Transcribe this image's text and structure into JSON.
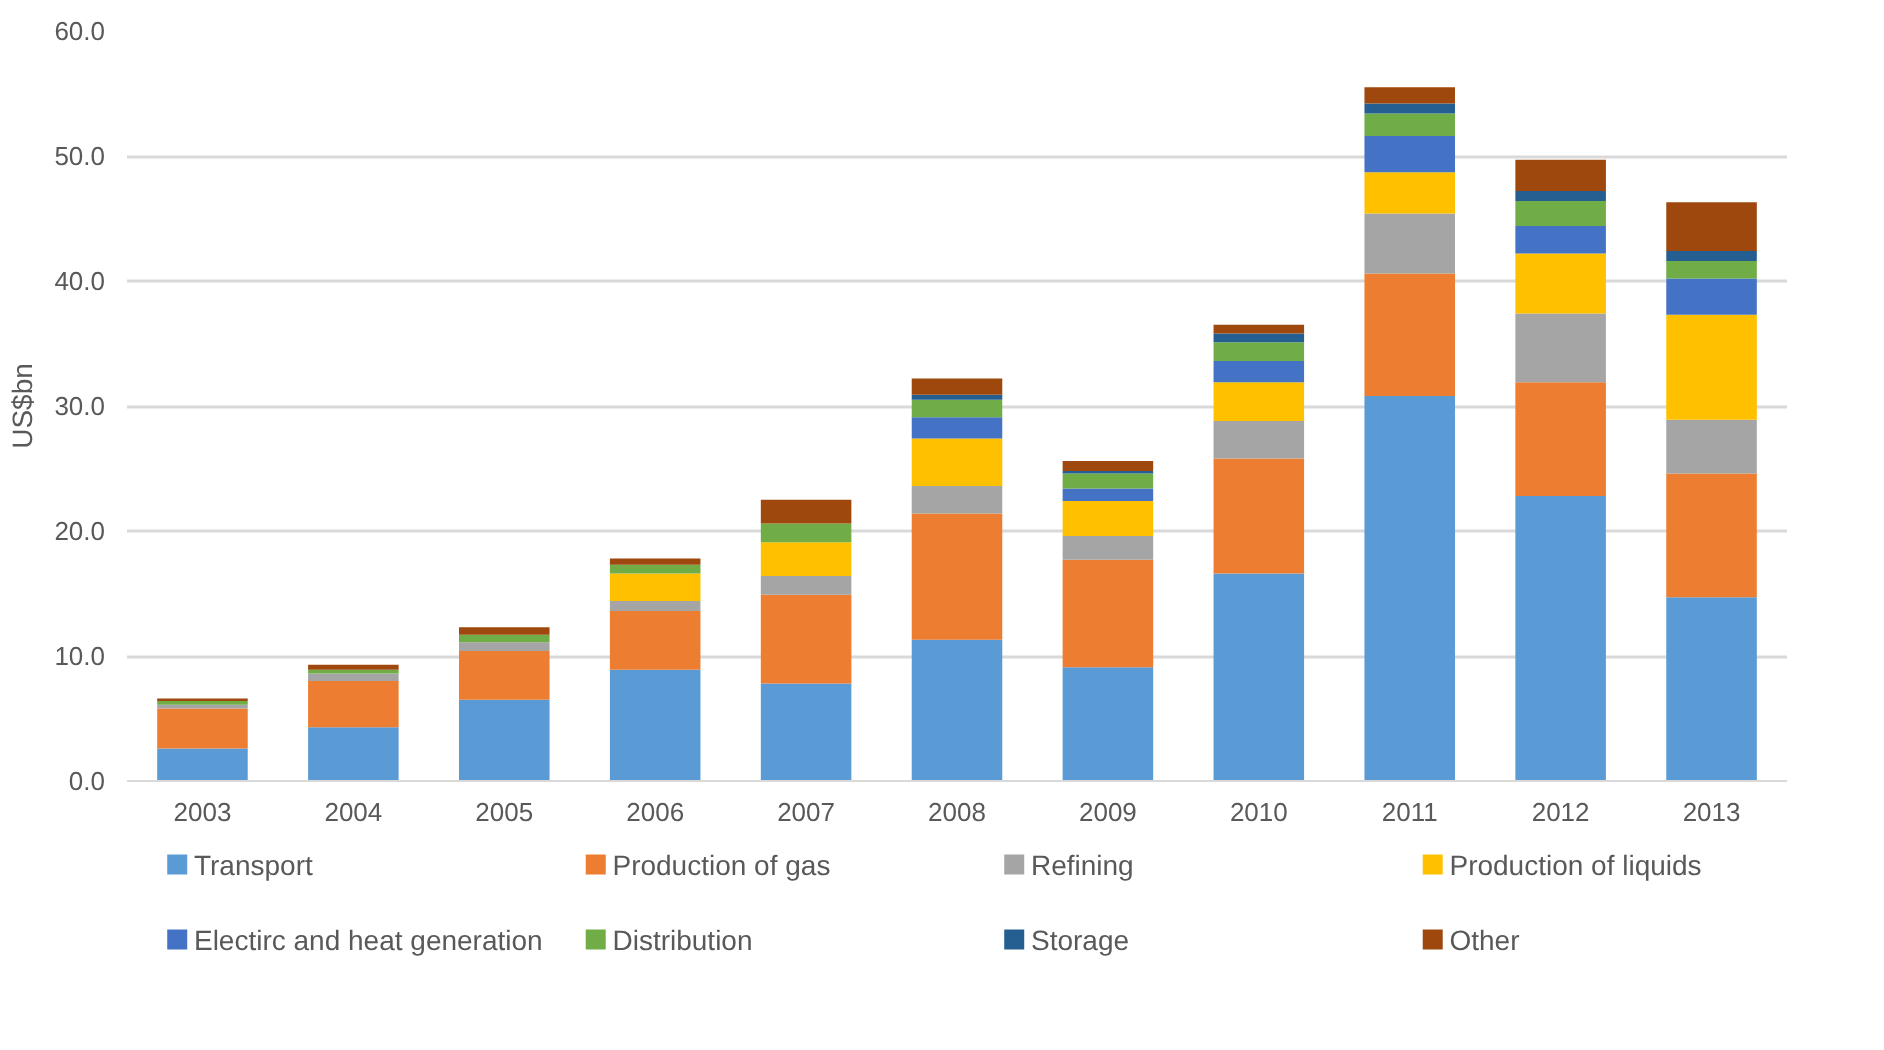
{
  "chart_data": {
    "type": "bar",
    "stacked": true,
    "ylabel": "US$bn",
    "categories": [
      "2003",
      "2004",
      "2005",
      "2006",
      "2007",
      "2008",
      "2009",
      "2010",
      "2011",
      "2012",
      "2013"
    ],
    "series": [
      {
        "name": "Transport",
        "color": "#5b9bd5",
        "values": [
          2.6,
          4.3,
          6.5,
          8.9,
          7.8,
          11.3,
          9.1,
          16.6,
          30.8,
          22.8,
          14.7
        ]
      },
      {
        "name": "Production of gas",
        "color": "#ed7d31",
        "values": [
          3.2,
          3.7,
          3.9,
          4.7,
          7.1,
          10.1,
          8.6,
          9.2,
          9.8,
          9.1,
          9.9
        ]
      },
      {
        "name": "Refining",
        "color": "#a5a5a5",
        "values": [
          0.3,
          0.6,
          0.7,
          0.8,
          1.5,
          2.2,
          1.9,
          3.0,
          4.8,
          5.5,
          4.3
        ]
      },
      {
        "name": "Production of liquids",
        "color": "#ffc000",
        "values": [
          0,
          0,
          0,
          2.2,
          2.7,
          3.8,
          2.8,
          3.1,
          3.3,
          4.8,
          8.4
        ]
      },
      {
        "name": "Electirc and heat generation",
        "color": "#4472c4",
        "values": [
          0,
          0,
          0,
          0,
          0,
          1.7,
          1.0,
          1.7,
          2.9,
          2.2,
          2.9
        ]
      },
      {
        "name": "Distribution",
        "color": "#70ad47",
        "values": [
          0.3,
          0.3,
          0.6,
          0.7,
          1.5,
          1.4,
          1.2,
          1.5,
          1.8,
          2.0,
          1.4
        ]
      },
      {
        "name": "Storage",
        "color": "#255e91",
        "values": [
          0,
          0,
          0,
          0,
          0,
          0.4,
          0.2,
          0.7,
          0.8,
          0.8,
          0.8
        ]
      },
      {
        "name": "Other",
        "color": "#9e480e",
        "values": [
          0.2,
          0.4,
          0.6,
          0.5,
          1.9,
          1.3,
          0.8,
          0.7,
          1.3,
          2.5,
          3.9
        ]
      }
    ],
    "ylim": [
      0,
      60
    ],
    "yticks": [
      {
        "value": 0,
        "label": "0.0"
      },
      {
        "value": 10,
        "label": "10.0"
      },
      {
        "value": 20,
        "label": "20.0"
      },
      {
        "value": 30,
        "label": "30.0"
      },
      {
        "value": 40,
        "label": "40.0"
      },
      {
        "value": 50,
        "label": "50.0"
      },
      {
        "value": 60,
        "label": "60.0"
      }
    ],
    "grid": "y",
    "legend": "bottom"
  }
}
